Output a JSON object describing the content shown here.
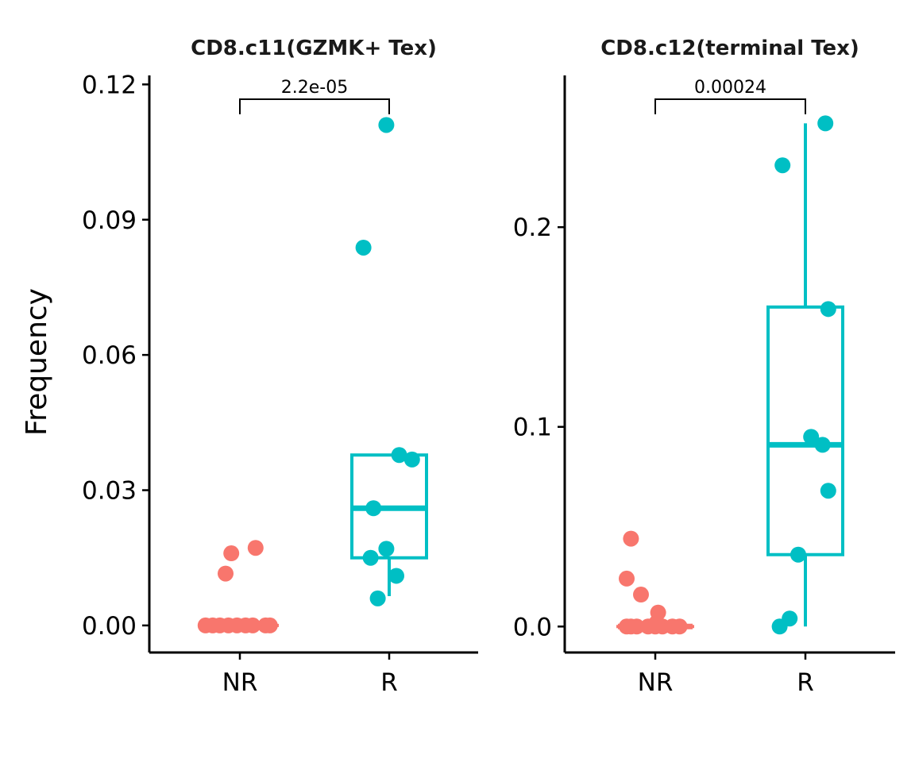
{
  "figure": {
    "ylabel": "Frequency"
  },
  "colors": {
    "NR": "#F8766D",
    "R": "#00BFC4",
    "axis": "#000000"
  },
  "chart_data": [
    {
      "type": "box",
      "title": "CD8.c11(GZMK+ Tex)",
      "categories": [
        "NR",
        "R"
      ],
      "ylim": [
        -0.006,
        0.122
      ],
      "yticks": [
        0.0,
        0.03,
        0.06,
        0.09,
        0.12
      ],
      "ytick_labels": [
        "0.00",
        "0.03",
        "0.06",
        "0.09",
        "0.12"
      ],
      "comparison": {
        "groups": [
          "NR",
          "R"
        ],
        "label": "2.2e-05"
      },
      "groups": [
        {
          "name": "NR",
          "box": {
            "min": 0.0,
            "q1": 0.0,
            "median": 0.0,
            "q3": 0.0,
            "max": 0.0
          },
          "points": [
            {
              "x": -0.24,
              "y": 0.0
            },
            {
              "x": -0.19,
              "y": 0.0
            },
            {
              "x": -0.14,
              "y": 0.0
            },
            {
              "x": -0.08,
              "y": 0.0
            },
            {
              "x": -0.02,
              "y": 0.0
            },
            {
              "x": 0.04,
              "y": 0.0
            },
            {
              "x": 0.09,
              "y": 0.0
            },
            {
              "x": 0.18,
              "y": 0.0
            },
            {
              "x": 0.21,
              "y": 0.0
            },
            {
              "x": -0.1,
              "y": 0.0115
            },
            {
              "x": -0.06,
              "y": 0.016
            },
            {
              "x": 0.11,
              "y": 0.0172
            }
          ]
        },
        {
          "name": "R",
          "box": {
            "min": 0.0065,
            "q1": 0.015,
            "median": 0.026,
            "q3": 0.0378,
            "max": 0.0378
          },
          "points": [
            {
              "x": -0.18,
              "y": 0.0838
            },
            {
              "x": -0.02,
              "y": 0.111
            },
            {
              "x": 0.07,
              "y": 0.0378
            },
            {
              "x": 0.16,
              "y": 0.0368
            },
            {
              "x": -0.11,
              "y": 0.026
            },
            {
              "x": -0.02,
              "y": 0.017
            },
            {
              "x": -0.13,
              "y": 0.015
            },
            {
              "x": 0.05,
              "y": 0.011
            },
            {
              "x": -0.08,
              "y": 0.006
            }
          ]
        }
      ]
    },
    {
      "type": "box",
      "title": "CD8.c12(terminal Tex)",
      "categories": [
        "NR",
        "R"
      ],
      "ylim": [
        -0.013,
        0.276
      ],
      "yticks": [
        0.0,
        0.1,
        0.2
      ],
      "ytick_labels": [
        "0.0",
        "0.1",
        "0.2"
      ],
      "comparison": {
        "groups": [
          "NR",
          "R"
        ],
        "label": "0.00024"
      },
      "groups": [
        {
          "name": "NR",
          "box": {
            "min": 0.0,
            "q1": 0.0,
            "median": 0.0,
            "q3": 0.0,
            "max": 0.0
          },
          "points": [
            {
              "x": -0.2,
              "y": 0.0
            },
            {
              "x": -0.17,
              "y": 0.0
            },
            {
              "x": -0.13,
              "y": 0.0
            },
            {
              "x": -0.05,
              "y": 0.0
            },
            {
              "x": 0.0,
              "y": 0.0
            },
            {
              "x": 0.05,
              "y": 0.0
            },
            {
              "x": 0.12,
              "y": 0.0
            },
            {
              "x": 0.17,
              "y": 0.0
            },
            {
              "x": 0.01,
              "y": 0.002
            },
            {
              "x": 0.02,
              "y": 0.007
            },
            {
              "x": -0.1,
              "y": 0.016
            },
            {
              "x": -0.2,
              "y": 0.024
            },
            {
              "x": -0.17,
              "y": 0.044
            }
          ]
        },
        {
          "name": "R",
          "box": {
            "min": 0.0,
            "q1": 0.036,
            "median": 0.091,
            "q3": 0.16,
            "max": 0.252
          },
          "points": [
            {
              "x": 0.14,
              "y": 0.252
            },
            {
              "x": -0.16,
              "y": 0.231
            },
            {
              "x": 0.16,
              "y": 0.159
            },
            {
              "x": 0.04,
              "y": 0.095
            },
            {
              "x": 0.12,
              "y": 0.091
            },
            {
              "x": 0.16,
              "y": 0.068
            },
            {
              "x": -0.05,
              "y": 0.036
            },
            {
              "x": -0.11,
              "y": 0.004
            },
            {
              "x": -0.18,
              "y": 0.0
            }
          ]
        }
      ]
    }
  ]
}
